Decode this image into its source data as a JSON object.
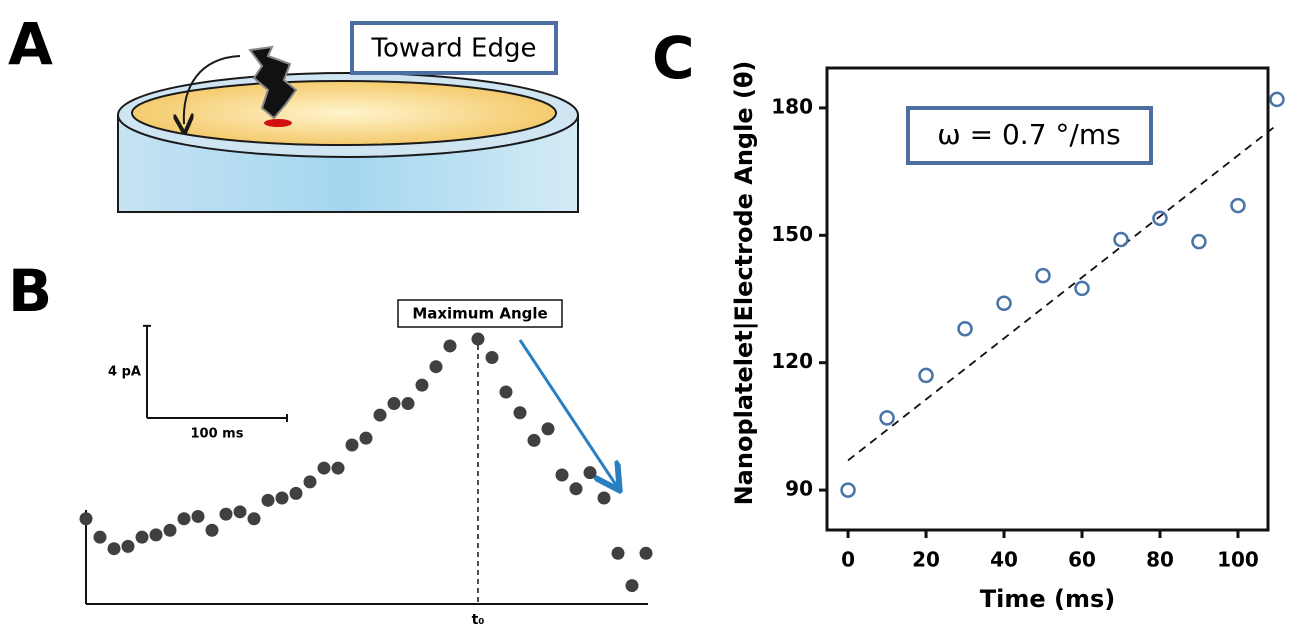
{
  "panel_labels": [
    "A",
    "B",
    "C"
  ],
  "diagram": {
    "label": "Toward Edge"
  },
  "chart_data": [
    {
      "type": "scatter",
      "color": "#404040",
      "x": [
        0,
        10,
        20,
        30,
        40,
        50,
        60,
        70,
        80,
        90,
        100,
        110,
        120,
        130,
        140,
        150,
        160,
        170,
        180,
        190,
        200,
        210,
        220,
        230,
        240,
        250,
        260,
        280,
        290,
        300,
        310,
        320,
        330,
        340,
        350,
        360,
        370,
        380,
        390,
        400
      ],
      "values": [
        3.7,
        2.9,
        2.4,
        2.5,
        2.9,
        3.0,
        3.2,
        3.7,
        3.8,
        3.2,
        3.9,
        4.0,
        3.7,
        4.5,
        4.6,
        4.8,
        5.3,
        5.9,
        5.9,
        6.9,
        7.2,
        8.2,
        8.7,
        8.7,
        9.5,
        10.3,
        11.2,
        11.5,
        10.7,
        9.2,
        8.3,
        7.1,
        7.6,
        5.6,
        5.0,
        5.7,
        4.6,
        2.2,
        0.8,
        2.2
      ],
      "xlim": [
        0,
        400
      ],
      "ylim": [
        0,
        12.5
      ],
      "scale_bar": {
        "y": 4,
        "y_label": "4 pA",
        "x": 100,
        "x_label": "100 ms"
      },
      "marker": {
        "x": 280,
        "label": "Maximum Angle",
        "axis_label": "t₀"
      }
    },
    {
      "type": "scatter",
      "color": "#4a74a8",
      "x": [
        0,
        10,
        20,
        30,
        40,
        50,
        60,
        70,
        80,
        90,
        100,
        110
      ],
      "values": [
        90,
        107,
        117,
        128,
        134,
        140.5,
        137.5,
        149,
        154,
        148.5,
        157,
        182
      ],
      "xlim": [
        -5.4,
        107.7
      ],
      "ylim": [
        80.6,
        189.4
      ],
      "xticks": [
        0,
        20,
        40,
        60,
        80,
        100
      ],
      "yticks": [
        90,
        120,
        150,
        180
      ],
      "x_label": "Time (ms)",
      "y_label": "Nanoplatelet|Electrode Angle (θ)",
      "annotation": "ω = 0.7 °/ms",
      "trend_line": {
        "x": [
          0,
          110
        ],
        "y": [
          97,
          176
        ]
      }
    }
  ]
}
